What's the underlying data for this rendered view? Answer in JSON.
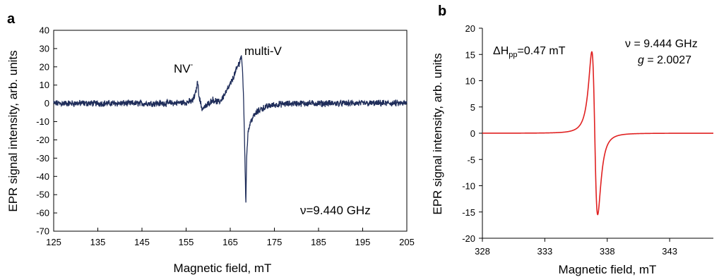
{
  "figure": {
    "panel_a_letter": "a",
    "panel_b_letter": "b"
  },
  "chart_data": [
    {
      "panel": "a",
      "type": "line",
      "xlabel": "Magnetic field, mT",
      "ylabel": "EPR signal intensity, arb. units",
      "xlim": [
        125,
        205
      ],
      "ylim": [
        -70,
        40
      ],
      "xticks": [
        125,
        135,
        145,
        155,
        165,
        175,
        185,
        195,
        205
      ],
      "yticks": [
        40,
        30,
        20,
        10,
        0,
        -10,
        -20,
        -30,
        -40,
        -50,
        -60,
        -70
      ],
      "grid": false,
      "color": "#1f2d5a",
      "series": [
        {
          "x": [
            125,
            150,
            155,
            156.5,
            157.2,
            157.6,
            158.0,
            158.6,
            159.5,
            161,
            162.5,
            163.5,
            164.5,
            165.5,
            166.3,
            167.0,
            167.5,
            167.8,
            168.0,
            168.2,
            168.4,
            168.55,
            168.7,
            169.0,
            169.5,
            170,
            171,
            172,
            174,
            176,
            180,
            190,
            205
          ],
          "y": [
            0,
            0,
            0.5,
            1.5,
            6,
            12,
            3,
            -3,
            -1.5,
            2,
            0.5,
            4,
            8,
            13,
            18,
            22,
            26,
            18,
            3,
            -15,
            -40,
            -56,
            -30,
            -16,
            -11,
            -8,
            -5,
            -3,
            -1.2,
            -0.5,
            0,
            0,
            0
          ]
        }
      ],
      "annotations": {
        "peak1": "NV",
        "peak1_sup": "-",
        "peak2": "multi-V",
        "freq": "ν=9.440 GHz"
      }
    },
    {
      "panel": "b",
      "type": "line",
      "xlabel": "Magnetic field, mT",
      "ylabel": "EPR signal intensity, arb. units",
      "xlim": [
        328,
        346.5
      ],
      "ylim": [
        -20,
        20
      ],
      "xticks": [
        328,
        333,
        338,
        343
      ],
      "yticks": [
        20,
        15,
        10,
        5,
        0,
        -5,
        -10,
        -15,
        -20
      ],
      "grid": false,
      "color": "#e02020",
      "line_center_mT": 337.0,
      "line_peak": 15.5,
      "line_width_pp_mT": 0.47,
      "annotations": {
        "linewidth": "ΔH",
        "linewidth_sub": "pp",
        "linewidth_value": "=0.47 mT",
        "freq": "ν = 9.444 GHz",
        "g_symbol": "g",
        "g_value": " = 2.0027"
      }
    }
  ]
}
